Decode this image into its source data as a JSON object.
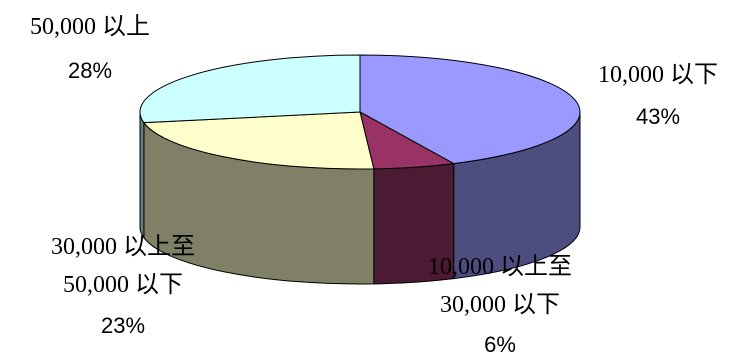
{
  "chart_data": {
    "type": "pie",
    "style": "3d",
    "slices": [
      {
        "label_num": "10,000 ",
        "label_cjk": "以下",
        "label_num2": "",
        "label_cjk2": "",
        "value": 43,
        "value_label": "43%",
        "color_top": "#9999ff",
        "color_side": "#4d4d80"
      },
      {
        "label_num": "10,000 ",
        "label_cjk": "以上至",
        "label_num2": "30,000 ",
        "label_cjk2": "以下",
        "value": 6,
        "value_label": "6%",
        "color_top": "#993366",
        "color_side": "#4d1a33"
      },
      {
        "label_num": "30,000 ",
        "label_cjk": "以上至",
        "label_num2": "50,000 ",
        "label_cjk2": "以下",
        "value": 23,
        "value_label": "23%",
        "color_top": "#ffffcc",
        "color_side": "#808066"
      },
      {
        "label_num": "50,000 ",
        "label_cjk": "以上",
        "label_num2": "",
        "label_cjk2": "",
        "value": 28,
        "value_label": "28%",
        "color_top": "#ccffff",
        "color_side": "#668080"
      }
    ]
  }
}
